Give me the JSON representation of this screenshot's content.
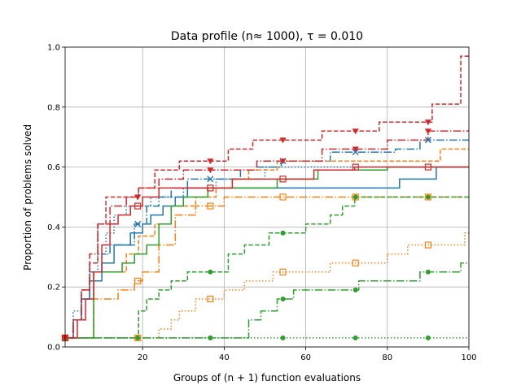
{
  "chart_data": {
    "type": "line",
    "step": true,
    "title": "Data profile (n≈ 1000), τ = 0.010",
    "xlabel": "Groups of (n + 1) function evaluations",
    "ylabel": "Proportion of problems solved",
    "xlim": [
      1,
      100
    ],
    "ylim": [
      0.0,
      1.0
    ],
    "grid": true,
    "legend": "none",
    "xticks": [
      20,
      40,
      60,
      80,
      100
    ],
    "xtick_labels": [
      "20",
      "40",
      "60",
      "80",
      "100"
    ],
    "yticks": [
      0.0,
      0.2,
      0.4,
      0.6,
      0.8,
      1.0
    ],
    "ytick_labels": [
      "0.0",
      "0.2",
      "0.4",
      "0.6",
      "0.8",
      "1.0"
    ],
    "colors": {
      "blue": "#1f77b4",
      "orange": "#ff7f0e",
      "green": "#2ca02c",
      "red": "#d62728",
      "grid": "#b0b0b0"
    },
    "series": [
      {
        "name": "blue-solid",
        "color": "#1f77b4",
        "dash": "solid",
        "marker": "none",
        "x": [
          1,
          3,
          5,
          7,
          10,
          13,
          17,
          20,
          22,
          25,
          28,
          31,
          33,
          37,
          50,
          66,
          75,
          83,
          92,
          100
        ],
        "y": [
          0.03,
          0.09,
          0.16,
          0.22,
          0.28,
          0.34,
          0.38,
          0.41,
          0.44,
          0.47,
          0.5,
          0.53,
          0.53,
          0.53,
          0.53,
          0.53,
          0.53,
          0.56,
          0.6,
          0.6
        ]
      },
      {
        "name": "blue-dashdot",
        "color": "#1f77b4",
        "dash": "dashdot",
        "marker": "x",
        "x": [
          1,
          3,
          5,
          7,
          10,
          12,
          15,
          18,
          21,
          24,
          27,
          31,
          36,
          44,
          48,
          54,
          60,
          66,
          73,
          78,
          82,
          88,
          92,
          100
        ],
        "y": [
          0.03,
          0.09,
          0.16,
          0.25,
          0.31,
          0.34,
          0.34,
          0.41,
          0.47,
          0.5,
          0.53,
          0.56,
          0.56,
          0.59,
          0.6,
          0.62,
          0.62,
          0.65,
          0.65,
          0.65,
          0.66,
          0.69,
          0.69,
          0.69
        ]
      },
      {
        "name": "blue-dotted",
        "color": "#1f77b4",
        "dash": "dotted",
        "marker": "none",
        "x": [
          1,
          3,
          5,
          7,
          9,
          11,
          13,
          16,
          22,
          30,
          38,
          50,
          63,
          75,
          100
        ],
        "y": [
          0.03,
          0.12,
          0.19,
          0.25,
          0.31,
          0.38,
          0.44,
          0.47,
          0.5,
          0.53,
          0.56,
          0.6,
          0.6,
          0.6,
          0.6
        ]
      },
      {
        "name": "orange-dashed",
        "color": "#ff7f0e",
        "dash": "dashed",
        "marker": "none",
        "x": [
          1,
          8,
          16,
          19,
          23,
          27,
          33,
          38,
          42,
          46,
          53,
          60,
          67,
          73,
          85,
          93,
          100
        ],
        "y": [
          0.03,
          0.25,
          0.31,
          0.37,
          0.41,
          0.47,
          0.5,
          0.53,
          0.56,
          0.59,
          0.62,
          0.62,
          0.62,
          0.62,
          0.62,
          0.66,
          0.66
        ]
      },
      {
        "name": "orange-dashdot",
        "color": "#ff7f0e",
        "dash": "dashdot",
        "marker": "square",
        "x": [
          1,
          8,
          14,
          18,
          20,
          24,
          28,
          33,
          40,
          46,
          48,
          52,
          60,
          70,
          80,
          90,
          100
        ],
        "y": [
          0.03,
          0.16,
          0.19,
          0.22,
          0.25,
          0.34,
          0.44,
          0.47,
          0.5,
          0.5,
          0.5,
          0.5,
          0.5,
          0.5,
          0.5,
          0.5,
          0.5
        ]
      },
      {
        "name": "orange-dotted",
        "color": "#ff7f0e",
        "dash": "dotted",
        "marker": "square",
        "x": [
          1,
          18,
          24,
          27,
          29,
          33,
          36,
          40,
          45,
          52,
          58,
          66,
          72,
          78,
          80,
          85,
          92,
          99,
          100
        ],
        "y": [
          0.03,
          0.03,
          0.06,
          0.09,
          0.12,
          0.16,
          0.16,
          0.19,
          0.22,
          0.25,
          0.25,
          0.28,
          0.28,
          0.28,
          0.31,
          0.34,
          0.34,
          0.38,
          0.38
        ]
      },
      {
        "name": "green-solid",
        "color": "#2ca02c",
        "dash": "solid",
        "marker": "none",
        "x": [
          1,
          8,
          12,
          15,
          18,
          21,
          24,
          27,
          30,
          36,
          44,
          53,
          63,
          72,
          80,
          100
        ],
        "y": [
          0.03,
          0.25,
          0.25,
          0.28,
          0.31,
          0.34,
          0.41,
          0.47,
          0.5,
          0.53,
          0.53,
          0.56,
          0.59,
          0.59,
          0.6,
          0.6
        ]
      },
      {
        "name": "green-dashed",
        "color": "#2ca02c",
        "dash": "dashed",
        "marker": "circle",
        "x": [
          1,
          19,
          21,
          24,
          27,
          31,
          37,
          41,
          45,
          51,
          55,
          60,
          66,
          69,
          72,
          78,
          84,
          100
        ],
        "y": [
          0.03,
          0.12,
          0.16,
          0.19,
          0.22,
          0.25,
          0.25,
          0.31,
          0.34,
          0.38,
          0.38,
          0.41,
          0.44,
          0.47,
          0.5,
          0.5,
          0.5,
          0.5
        ]
      },
      {
        "name": "green-dashdot",
        "color": "#2ca02c",
        "dash": "dashdot",
        "marker": "circle",
        "x": [
          1,
          20,
          36,
          46,
          49,
          53,
          57,
          60,
          72,
          73,
          80,
          88,
          93,
          98,
          100
        ],
        "y": [
          0.03,
          0.03,
          0.03,
          0.09,
          0.12,
          0.16,
          0.19,
          0.19,
          0.19,
          0.22,
          0.22,
          0.25,
          0.25,
          0.28,
          0.28
        ]
      },
      {
        "name": "green-dotted",
        "color": "#2ca02c",
        "dash": "dotted",
        "marker": "circle",
        "x": [
          1,
          100
        ],
        "y": [
          0.03,
          0.03
        ]
      },
      {
        "name": "red-dashed",
        "color": "#d62728",
        "dash": "dashed",
        "marker": "triangle",
        "x": [
          1,
          3,
          5,
          7,
          9,
          11,
          14,
          19,
          23,
          29,
          41,
          47,
          55,
          64,
          72,
          78,
          91,
          98,
          100
        ],
        "y": [
          0.03,
          0.09,
          0.19,
          0.28,
          0.41,
          0.5,
          0.5,
          0.53,
          0.59,
          0.62,
          0.66,
          0.69,
          0.69,
          0.72,
          0.72,
          0.75,
          0.81,
          0.97,
          0.97
        ]
      },
      {
        "name": "red-dashdot",
        "color": "#d62728",
        "dash": "dashdot",
        "marker": "triangle",
        "x": [
          1,
          3,
          5,
          7,
          9,
          12,
          16,
          19,
          24,
          30,
          37,
          48,
          56,
          64,
          70,
          80,
          90,
          100
        ],
        "y": [
          0.03,
          0.09,
          0.19,
          0.31,
          0.41,
          0.47,
          0.5,
          0.53,
          0.56,
          0.59,
          0.59,
          0.62,
          0.62,
          0.66,
          0.66,
          0.69,
          0.72,
          0.72
        ]
      },
      {
        "name": "red-solid",
        "color": "#d62728",
        "dash": "solid",
        "marker": "square",
        "x": [
          1,
          4,
          6,
          8,
          10,
          12,
          14,
          17,
          20,
          24,
          28,
          36,
          42,
          54,
          62,
          72,
          100
        ],
        "y": [
          0.03,
          0.09,
          0.16,
          0.25,
          0.34,
          0.41,
          0.44,
          0.47,
          0.5,
          0.53,
          0.53,
          0.53,
          0.56,
          0.56,
          0.59,
          0.6,
          0.6
        ]
      }
    ]
  }
}
